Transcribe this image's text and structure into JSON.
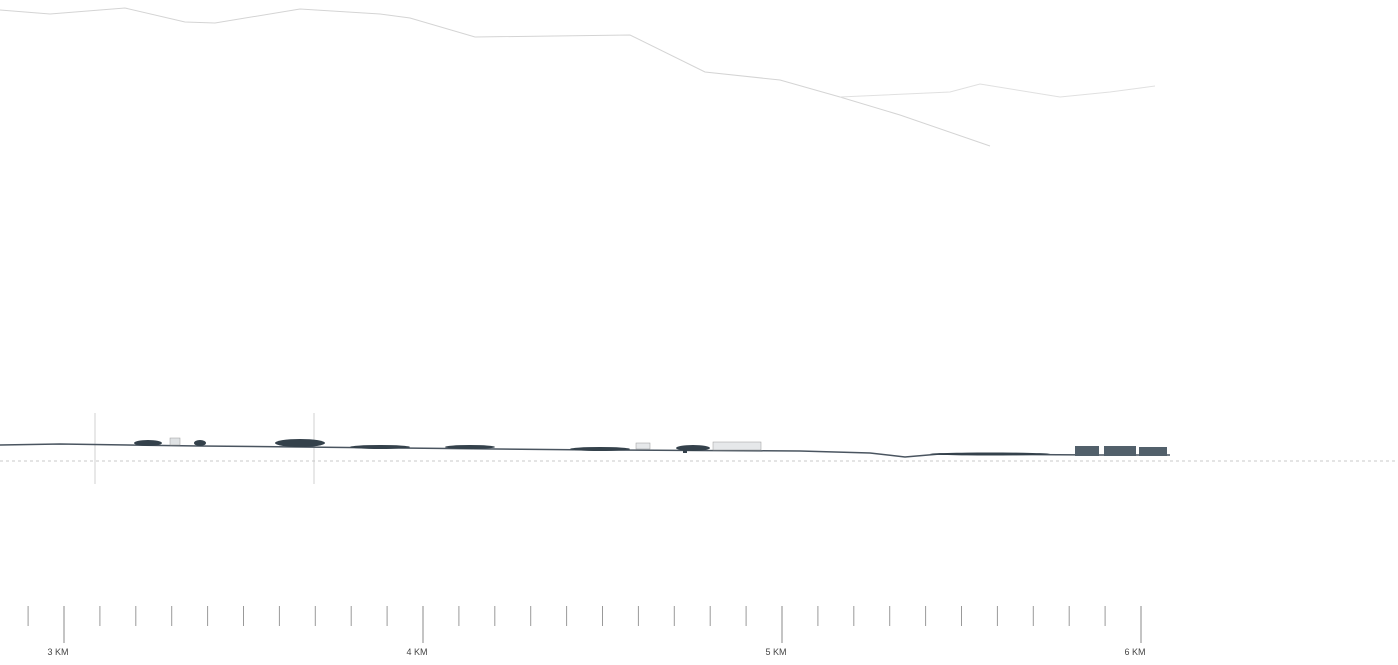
{
  "scale_labels": [
    "3 KM",
    "4 KM",
    "5 KM",
    "6 KM"
  ]
}
